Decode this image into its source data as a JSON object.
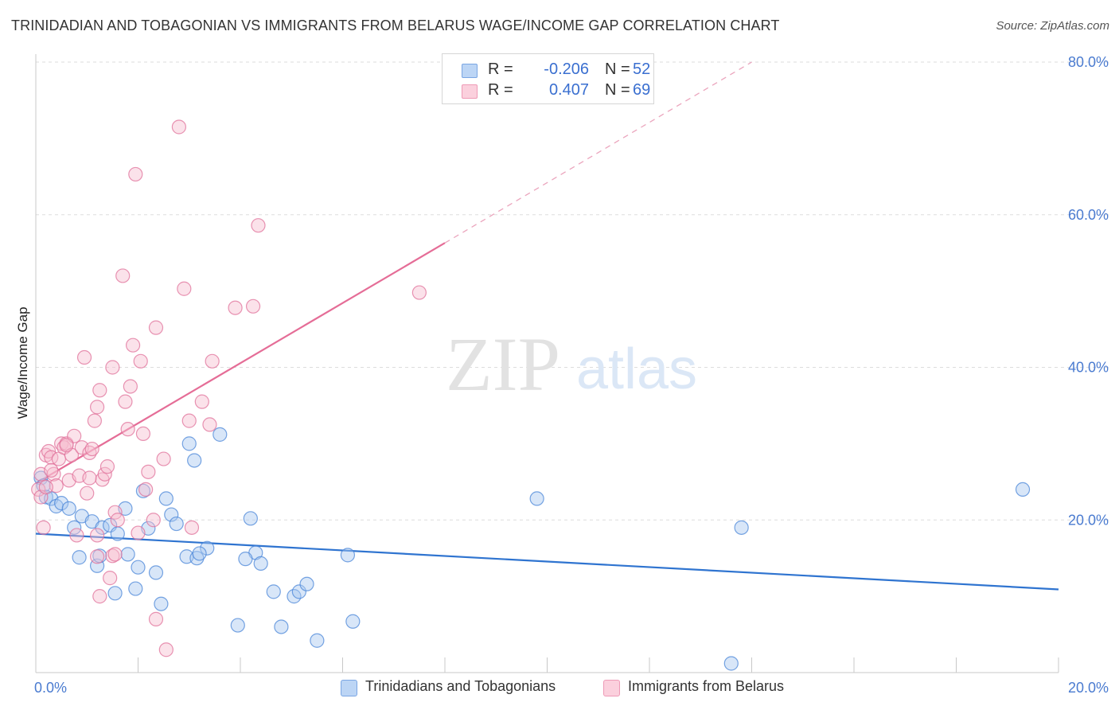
{
  "title": "TRINIDADIAN AND TOBAGONIAN VS IMMIGRANTS FROM BELARUS WAGE/INCOME GAP CORRELATION CHART",
  "source": "Source: ZipAtlas.com",
  "watermark": {
    "zip": "ZIP",
    "atlas": "atlas"
  },
  "legend": {
    "rows": [
      {
        "r_label": "R =",
        "r_value": "-0.206",
        "n_label": "N =",
        "n_value": "52",
        "color": "#9fc3f0"
      },
      {
        "r_label": "R =",
        "r_value": "0.407",
        "n_label": "N =",
        "n_value": "69",
        "color": "#f5b3c8"
      }
    ]
  },
  "chart_data": {
    "type": "scatter",
    "title": "TRINIDADIAN AND TOBAGONIAN VS IMMIGRANTS FROM BELARUS WAGE/INCOME GAP CORRELATION CHART",
    "xlabel": "",
    "ylabel": "Wage/Income Gap",
    "xlim": [
      0,
      20
    ],
    "ylim": [
      0,
      80
    ],
    "x_tick_labels": [
      "0.0%",
      "20.0%"
    ],
    "y_tick_labels": [
      "20.0%",
      "40.0%",
      "60.0%",
      "80.0%"
    ],
    "y_ticks": [
      20,
      40,
      60,
      80
    ],
    "grid": true,
    "legend_position": "bottom-center",
    "series": [
      {
        "name": "Trinidadians and Tobagonians",
        "color": "#4a86d8",
        "fill": "#a9c8f0",
        "trend": {
          "x": [
            0,
            20
          ],
          "y": [
            18.2,
            10.9
          ],
          "extend_to": 20
        },
        "points": [
          [
            0.1,
            25.5
          ],
          [
            0.15,
            24.5
          ],
          [
            0.2,
            23.0
          ],
          [
            0.3,
            22.8
          ],
          [
            0.4,
            21.8
          ],
          [
            0.5,
            22.2
          ],
          [
            0.65,
            21.5
          ],
          [
            0.75,
            19.0
          ],
          [
            0.9,
            20.5
          ],
          [
            1.1,
            19.8
          ],
          [
            1.3,
            19.0
          ],
          [
            1.45,
            19.3
          ],
          [
            1.6,
            18.2
          ],
          [
            1.75,
            21.5
          ],
          [
            2.1,
            23.8
          ],
          [
            2.2,
            18.9
          ],
          [
            2.55,
            22.8
          ],
          [
            2.65,
            20.7
          ],
          [
            2.75,
            19.5
          ],
          [
            2.95,
            15.2
          ],
          [
            3.1,
            27.8
          ],
          [
            3.0,
            30.0
          ],
          [
            3.6,
            31.2
          ],
          [
            3.15,
            15.0
          ],
          [
            3.35,
            16.3
          ],
          [
            0.85,
            15.1
          ],
          [
            1.2,
            14.0
          ],
          [
            1.25,
            15.3
          ],
          [
            1.8,
            15.5
          ],
          [
            2.0,
            13.8
          ],
          [
            2.35,
            13.1
          ],
          [
            1.55,
            10.4
          ],
          [
            1.95,
            11.0
          ],
          [
            2.45,
            9.0
          ],
          [
            4.2,
            20.2
          ],
          [
            4.3,
            15.7
          ],
          [
            4.1,
            14.9
          ],
          [
            4.4,
            14.3
          ],
          [
            4.65,
            10.6
          ],
          [
            5.05,
            10.0
          ],
          [
            5.15,
            10.6
          ],
          [
            5.3,
            11.6
          ],
          [
            6.1,
            15.4
          ],
          [
            6.2,
            6.7
          ],
          [
            3.95,
            6.2
          ],
          [
            4.8,
            6.0
          ],
          [
            5.5,
            4.2
          ],
          [
            9.8,
            22.8
          ],
          [
            13.8,
            19.0
          ],
          [
            13.6,
            1.2
          ],
          [
            19.3,
            24.0
          ],
          [
            3.2,
            15.6
          ]
        ]
      },
      {
        "name": "Immigrants from Belarus",
        "color": "#e0709a",
        "fill": "#f7bfd0",
        "trend": {
          "x": [
            0,
            8.0
          ],
          "y": [
            24.8,
            56.3
          ],
          "dashed_to": [
            14.0,
            80.0
          ]
        },
        "points": [
          [
            0.05,
            24.0
          ],
          [
            0.1,
            26.0
          ],
          [
            0.2,
            28.5
          ],
          [
            0.25,
            29.0
          ],
          [
            0.3,
            28.2
          ],
          [
            0.35,
            26.0
          ],
          [
            0.4,
            24.5
          ],
          [
            0.45,
            28.0
          ],
          [
            0.5,
            30.0
          ],
          [
            0.55,
            29.5
          ],
          [
            0.6,
            30.0
          ],
          [
            0.65,
            25.2
          ],
          [
            0.7,
            28.5
          ],
          [
            0.75,
            31.0
          ],
          [
            0.85,
            25.8
          ],
          [
            0.9,
            29.5
          ],
          [
            0.95,
            41.3
          ],
          [
            1.0,
            23.5
          ],
          [
            1.05,
            28.8
          ],
          [
            1.1,
            29.3
          ],
          [
            1.15,
            33.0
          ],
          [
            1.2,
            34.8
          ],
          [
            1.25,
            37.0
          ],
          [
            1.3,
            25.3
          ],
          [
            1.35,
            26.0
          ],
          [
            1.4,
            27.0
          ],
          [
            1.5,
            40.0
          ],
          [
            1.55,
            21.0
          ],
          [
            1.6,
            20.0
          ],
          [
            1.7,
            52.0
          ],
          [
            1.75,
            35.5
          ],
          [
            1.8,
            31.9
          ],
          [
            1.85,
            37.5
          ],
          [
            1.9,
            42.9
          ],
          [
            2.0,
            18.3
          ],
          [
            2.05,
            40.8
          ],
          [
            2.1,
            31.3
          ],
          [
            2.15,
            24.0
          ],
          [
            2.2,
            26.3
          ],
          [
            2.3,
            20.0
          ],
          [
            2.35,
            45.2
          ],
          [
            2.5,
            28.0
          ],
          [
            2.8,
            71.5
          ],
          [
            2.9,
            50.3
          ],
          [
            3.0,
            33.0
          ],
          [
            3.05,
            19.0
          ],
          [
            3.25,
            35.5
          ],
          [
            3.4,
            32.5
          ],
          [
            3.45,
            40.8
          ],
          [
            3.9,
            47.8
          ],
          [
            4.25,
            48.0
          ],
          [
            4.35,
            58.6
          ],
          [
            7.5,
            49.8
          ],
          [
            1.95,
            65.3
          ],
          [
            0.15,
            19.0
          ],
          [
            1.2,
            18.0
          ],
          [
            1.45,
            12.4
          ],
          [
            1.25,
            10.0
          ],
          [
            1.5,
            15.3
          ],
          [
            1.55,
            15.5
          ],
          [
            2.35,
            7.0
          ],
          [
            2.55,
            3.0
          ],
          [
            0.1,
            23.0
          ],
          [
            0.2,
            24.3
          ],
          [
            0.6,
            29.8
          ],
          [
            0.8,
            18.0
          ],
          [
            1.05,
            25.5
          ],
          [
            0.3,
            26.5
          ],
          [
            1.2,
            15.2
          ]
        ]
      }
    ]
  },
  "axes": {
    "y_label": "Wage/Income Gap",
    "x_min_label": "0.0%",
    "x_max_label": "20.0%"
  }
}
